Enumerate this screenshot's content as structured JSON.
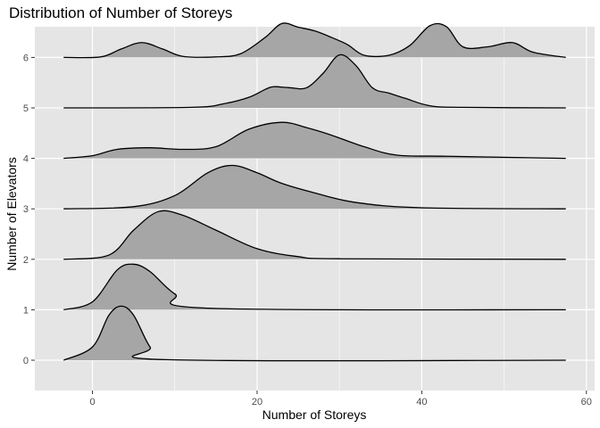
{
  "chart_data": {
    "type": "ridgeline",
    "title": "Distribution of Number of Storeys",
    "xlabel": "Number of Storeys",
    "ylabel": "Number of Elevators",
    "xlim": [
      -7,
      61
    ],
    "x_ticks": [
      0,
      20,
      40,
      60
    ],
    "y_ticks": [
      0,
      1,
      2,
      3,
      4,
      5,
      6
    ],
    "grid": true,
    "fill_color": "#a6a6a6",
    "panel_color": "#e5e5e5",
    "series": [
      {
        "name": "0",
        "x": [
          -3.5,
          0,
          2,
          3.5,
          5,
          7,
          9,
          57.5
        ],
        "density": [
          0,
          0.25,
          0.85,
          1.02,
          0.85,
          0.25,
          0.01,
          0
        ]
      },
      {
        "name": "1",
        "x": [
          -3.5,
          0,
          3,
          5,
          7,
          10,
          14,
          57.5
        ],
        "density": [
          0,
          0.15,
          0.75,
          0.86,
          0.72,
          0.3,
          0.03,
          0
        ]
      },
      {
        "name": "2",
        "x": [
          -3.5,
          2,
          5,
          8,
          11,
          15,
          20,
          25,
          30,
          57.5
        ],
        "density": [
          0,
          0.08,
          0.55,
          0.9,
          0.83,
          0.55,
          0.2,
          0.05,
          0.01,
          0
        ]
      },
      {
        "name": "3",
        "x": [
          -3.5,
          5,
          10,
          14,
          17,
          20,
          23,
          27,
          32,
          40,
          57.5
        ],
        "density": [
          0,
          0.04,
          0.25,
          0.68,
          0.82,
          0.68,
          0.48,
          0.3,
          0.12,
          0.02,
          0
        ]
      },
      {
        "name": "4",
        "x": [
          -3.5,
          0,
          3,
          7,
          11,
          15,
          19,
          23,
          26,
          29,
          33,
          37,
          43,
          57.5
        ],
        "density": [
          0,
          0.05,
          0.17,
          0.2,
          0.17,
          0.22,
          0.55,
          0.68,
          0.58,
          0.44,
          0.22,
          0.06,
          0.04,
          0
        ]
      },
      {
        "name": "5",
        "x": [
          -3.5,
          12,
          16,
          19,
          21,
          22,
          24,
          26,
          28,
          30,
          32,
          34,
          36,
          38,
          41,
          45,
          57.5
        ],
        "density": [
          0,
          0.01,
          0.08,
          0.2,
          0.35,
          0.4,
          0.38,
          0.38,
          0.65,
          1.0,
          0.8,
          0.38,
          0.28,
          0.18,
          0.04,
          0.01,
          0
        ]
      },
      {
        "name": "6",
        "x": [
          -3.5,
          1,
          3.5,
          6,
          8.5,
          11,
          15,
          18,
          21,
          23,
          25,
          27,
          29,
          31,
          33,
          36,
          38.5,
          41,
          43,
          45,
          48,
          51,
          53.5,
          57.5
        ],
        "density": [
          0,
          0.01,
          0.16,
          0.28,
          0.16,
          0.02,
          0.01,
          0.07,
          0.38,
          0.64,
          0.57,
          0.5,
          0.38,
          0.24,
          0.04,
          0.04,
          0.22,
          0.6,
          0.58,
          0.2,
          0.2,
          0.28,
          0.1,
          0
        ]
      }
    ]
  }
}
